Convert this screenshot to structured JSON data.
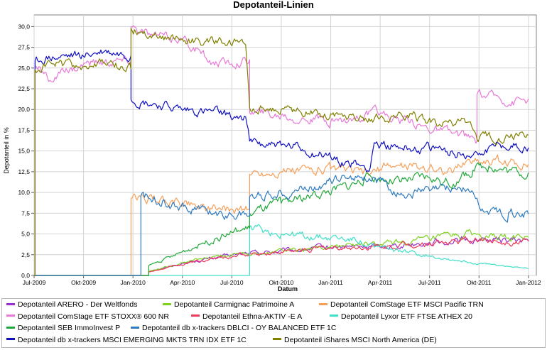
{
  "chart_data": {
    "type": "line",
    "title": "Depotanteil-Linien",
    "xlabel": "Datum",
    "ylabel": "Depotanteil in %",
    "ylim": [
      0,
      31.4
    ],
    "yticks": [
      0,
      2.5,
      5,
      7.5,
      10,
      12.5,
      15,
      17.5,
      20,
      22.5,
      25,
      27.5,
      30
    ],
    "ytick_labels": [
      "0,0",
      "2,5",
      "5,0",
      "7,5",
      "10,0",
      "12,5",
      "15,0",
      "17,5",
      "20,0",
      "22,5",
      "25,0",
      "27,5",
      "30,0"
    ],
    "xlim": [
      2009.5,
      2012.04
    ],
    "xticks": [
      2009.5,
      2009.75,
      2010.0,
      2010.25,
      2010.5,
      2010.75,
      2011.0,
      2011.25,
      2011.5,
      2011.75,
      2012.0
    ],
    "xtick_labels": [
      "Jul-2009",
      "Okt-2009",
      "Jan-2010",
      "Apr-2010",
      "Jul-2010",
      "Okt-2010",
      "Jan-2011",
      "Apr-2011",
      "Jul-2011",
      "Okt-2011",
      "Jan-2012"
    ],
    "grid": true,
    "legend_position": "bottom",
    "series": [
      {
        "name": "Depotanteil ARERO - Der Weltfonds",
        "color": "#9b30d0",
        "style": "solid",
        "points": [
          [
            2009.5,
            0
          ],
          [
            2010.0,
            0
          ],
          [
            2010.08,
            0
          ],
          [
            2010.08,
            0.5
          ],
          [
            2010.3,
            1.7
          ],
          [
            2010.55,
            2.6
          ],
          [
            2010.8,
            3.0
          ],
          [
            2011.0,
            3.4
          ],
          [
            2011.25,
            3.5
          ],
          [
            2011.5,
            4.0
          ],
          [
            2011.75,
            4.3
          ],
          [
            2012.0,
            4.2
          ]
        ]
      },
      {
        "name": "Depotanteil Carmignac Patrimoine A",
        "color": "#7ed321",
        "style": "solid",
        "points": [
          [
            2009.5,
            0
          ],
          [
            2010.08,
            0
          ],
          [
            2010.08,
            0.5
          ],
          [
            2010.3,
            1.8
          ],
          [
            2010.55,
            2.7
          ],
          [
            2010.8,
            3.1
          ],
          [
            2011.0,
            3.5
          ],
          [
            2011.25,
            3.7
          ],
          [
            2011.5,
            4.3
          ],
          [
            2011.72,
            5.0
          ],
          [
            2011.78,
            4.5
          ],
          [
            2012.0,
            4.6
          ]
        ]
      },
      {
        "name": "Depotanteil ComStage ETF MSCI Pacific TRN",
        "color": "#f5a05a",
        "style": "solid",
        "points": [
          [
            2009.5,
            0
          ],
          [
            2009.99,
            0
          ],
          [
            2009.99,
            9.3
          ],
          [
            2010.1,
            9.2
          ],
          [
            2010.3,
            8.6
          ],
          [
            2010.5,
            8.0
          ],
          [
            2010.59,
            8.0
          ],
          [
            2010.59,
            12.2
          ],
          [
            2010.75,
            12.5
          ],
          [
            2011.0,
            12.8
          ],
          [
            2011.2,
            12.2
          ],
          [
            2011.3,
            13.3
          ],
          [
            2011.5,
            13.0
          ],
          [
            2011.62,
            12.5
          ],
          [
            2011.7,
            14.0
          ],
          [
            2011.85,
            13.8
          ],
          [
            2012.0,
            13.4
          ]
        ]
      },
      {
        "name": "Depotanteil ComStage ETF STOXX® 600 NR",
        "color": "#e879d8",
        "style": "solid",
        "points": [
          [
            2009.5,
            0
          ],
          [
            2009.505,
            0
          ],
          [
            2009.505,
            25.2
          ],
          [
            2009.58,
            23.5
          ],
          [
            2009.75,
            25.5
          ],
          [
            2009.9,
            25.8
          ],
          [
            2009.99,
            25.8
          ],
          [
            2009.99,
            30.0
          ],
          [
            2010.1,
            28.8
          ],
          [
            2010.25,
            28.5
          ],
          [
            2010.4,
            25.6
          ],
          [
            2010.5,
            25.5
          ],
          [
            2010.59,
            26.0
          ],
          [
            2010.59,
            19.6
          ],
          [
            2010.75,
            19.3
          ],
          [
            2011.0,
            18.5
          ],
          [
            2011.25,
            19.5
          ],
          [
            2011.4,
            18.4
          ],
          [
            2011.55,
            17.5
          ],
          [
            2011.74,
            16.2
          ],
          [
            2011.74,
            21.8
          ],
          [
            2011.85,
            21.5
          ],
          [
            2011.93,
            21.0
          ],
          [
            2012.0,
            21.3
          ]
        ]
      },
      {
        "name": "Depotanteil Ethna-AKTIV -E A",
        "color": "#ee3a5a",
        "style": "solid",
        "points": [
          [
            2009.5,
            0
          ],
          [
            2010.08,
            0
          ],
          [
            2010.08,
            0.4
          ],
          [
            2010.3,
            1.6
          ],
          [
            2010.55,
            2.5
          ],
          [
            2010.8,
            2.9
          ],
          [
            2011.0,
            3.3
          ],
          [
            2011.25,
            3.4
          ],
          [
            2011.5,
            3.9
          ],
          [
            2011.75,
            4.2
          ],
          [
            2012.0,
            4.1
          ]
        ]
      },
      {
        "name": "Depotanteil Lyxor ETF FTSE ATHEX 20",
        "color": "#40e0c8",
        "style": "solid",
        "points": [
          [
            2009.5,
            0
          ],
          [
            2010.59,
            0
          ],
          [
            2010.59,
            5.8
          ],
          [
            2010.75,
            5.0
          ],
          [
            2010.9,
            4.6
          ],
          [
            2011.0,
            4.5
          ],
          [
            2011.15,
            4.2
          ],
          [
            2011.22,
            3.4
          ],
          [
            2011.35,
            3.0
          ],
          [
            2011.5,
            2.4
          ],
          [
            2011.65,
            1.8
          ],
          [
            2011.75,
            1.4
          ],
          [
            2011.9,
            1.1
          ],
          [
            2012.0,
            0.8
          ]
        ]
      },
      {
        "name": "Depotanteil SEB ImmoInvest P",
        "color": "#22a83a",
        "style": "solid",
        "points": [
          [
            2009.5,
            0
          ],
          [
            2010.08,
            0
          ],
          [
            2010.08,
            1.2
          ],
          [
            2010.2,
            2.3
          ],
          [
            2010.35,
            3.9
          ],
          [
            2010.5,
            5.2
          ],
          [
            2010.59,
            5.7
          ],
          [
            2010.59,
            7.5
          ],
          [
            2010.75,
            8.7
          ],
          [
            2010.9,
            9.6
          ],
          [
            2011.1,
            10.8
          ],
          [
            2011.2,
            12.0
          ],
          [
            2011.35,
            11.3
          ],
          [
            2011.5,
            11.8
          ],
          [
            2011.62,
            11.0
          ],
          [
            2011.72,
            12.7
          ],
          [
            2011.8,
            13.2
          ],
          [
            2011.9,
            12.6
          ],
          [
            2012.0,
            12.4
          ]
        ]
      },
      {
        "name": "Depotanteil db x-trackers DBLCI - OY BALANCED ETF 1C",
        "color": "#2e7bbf",
        "style": "solid",
        "points": [
          [
            2009.5,
            0
          ],
          [
            2010.04,
            0
          ],
          [
            2010.04,
            9.6
          ],
          [
            2010.15,
            9.0
          ],
          [
            2010.3,
            8.0
          ],
          [
            2010.45,
            7.5
          ],
          [
            2010.59,
            7.2
          ],
          [
            2010.59,
            9.5
          ],
          [
            2010.75,
            10.0
          ],
          [
            2010.9,
            10.7
          ],
          [
            2011.1,
            12.0
          ],
          [
            2011.22,
            11.8
          ],
          [
            2011.35,
            9.7
          ],
          [
            2011.5,
            10.2
          ],
          [
            2011.65,
            10.6
          ],
          [
            2011.72,
            10.0
          ],
          [
            2011.76,
            7.8
          ],
          [
            2011.9,
            7.6
          ],
          [
            2012.0,
            7.4
          ]
        ]
      },
      {
        "name": "Depotanteil db x-trackers MSCI EMERGING MKTS TRN IDX ETF 1C",
        "color": "#1010c0",
        "style": "solid",
        "points": [
          [
            2009.5,
            0
          ],
          [
            2009.505,
            0
          ],
          [
            2009.505,
            25.9
          ],
          [
            2009.6,
            26.2
          ],
          [
            2009.75,
            26.4
          ],
          [
            2009.85,
            26.9
          ],
          [
            2009.99,
            26.5
          ],
          [
            2009.99,
            21.2
          ],
          [
            2010.1,
            20.6
          ],
          [
            2010.25,
            19.9
          ],
          [
            2010.45,
            19.4
          ],
          [
            2010.57,
            19.1
          ],
          [
            2010.59,
            16.2
          ],
          [
            2010.75,
            15.7
          ],
          [
            2011.0,
            14.3
          ],
          [
            2011.15,
            13.2
          ],
          [
            2011.2,
            13.0
          ],
          [
            2011.22,
            16.0
          ],
          [
            2011.35,
            15.4
          ],
          [
            2011.5,
            15.3
          ],
          [
            2011.72,
            14.5
          ],
          [
            2011.74,
            14.8
          ],
          [
            2011.85,
            15.9
          ],
          [
            2012.0,
            15.4
          ]
        ]
      },
      {
        "name": "Depotanteil iShares MSCI North America (DE)",
        "color": "#808000",
        "style": "solid",
        "points": [
          [
            2009.5,
            0
          ],
          [
            2009.505,
            0
          ],
          [
            2009.505,
            24.8
          ],
          [
            2009.6,
            25.5
          ],
          [
            2009.75,
            25.2
          ],
          [
            2009.9,
            25.5
          ],
          [
            2009.99,
            24.9
          ],
          [
            2009.99,
            29.8
          ],
          [
            2010.1,
            29.0
          ],
          [
            2010.25,
            28.5
          ],
          [
            2010.45,
            28.0
          ],
          [
            2010.57,
            27.8
          ],
          [
            2010.59,
            20.2
          ],
          [
            2010.75,
            20.0
          ],
          [
            2011.0,
            19.5
          ],
          [
            2011.25,
            19.0
          ],
          [
            2011.4,
            19.5
          ],
          [
            2011.55,
            18.2
          ],
          [
            2011.7,
            18.5
          ],
          [
            2011.74,
            16.4
          ],
          [
            2011.85,
            16.5
          ],
          [
            2011.95,
            16.8
          ],
          [
            2012.0,
            16.9
          ]
        ]
      }
    ]
  }
}
